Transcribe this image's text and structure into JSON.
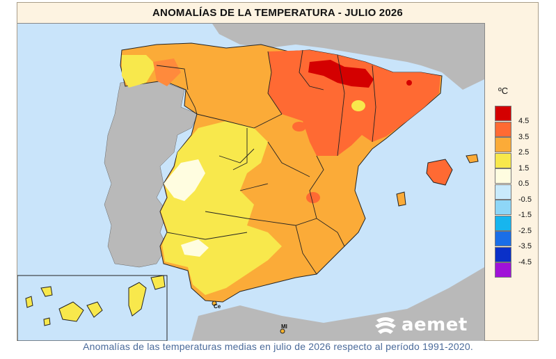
{
  "title": "ANOMALÍAS DE LA TEMPERATURA - JULIO 2026",
  "caption": "Anomalías de las temperaturas medias en julio de 2026 respecto al período 1991-2020.",
  "legend": {
    "unit": "ºC",
    "items": [
      {
        "label": "4.5",
        "color": "#d40000"
      },
      {
        "label": "3.5",
        "color": "#ff6a33"
      },
      {
        "label": "2.5",
        "color": "#fbab38"
      },
      {
        "label": "1.5",
        "color": "#f8e84c"
      },
      {
        "label": "0.5",
        "color": "#fffde0"
      },
      {
        "label": "-0.5",
        "color": "#c9eafb"
      },
      {
        "label": "-1.5",
        "color": "#8ed6f7"
      },
      {
        "label": "-2.5",
        "color": "#17b5ee"
      },
      {
        "label": "-3.5",
        "color": "#1a6ee8"
      },
      {
        "label": "-4.5",
        "color": "#0a30c8"
      },
      {
        "label": "",
        "color": "#a012d8"
      }
    ]
  },
  "map_labels": {
    "ceuta": "Ce",
    "melilla": "MI"
  },
  "logo": {
    "text": "aemet",
    "icon": "aemet-logo-icon"
  },
  "colors": {
    "sea": "#c9e4fa",
    "land_outside": "#b9b9b9",
    "border": "#222222"
  }
}
